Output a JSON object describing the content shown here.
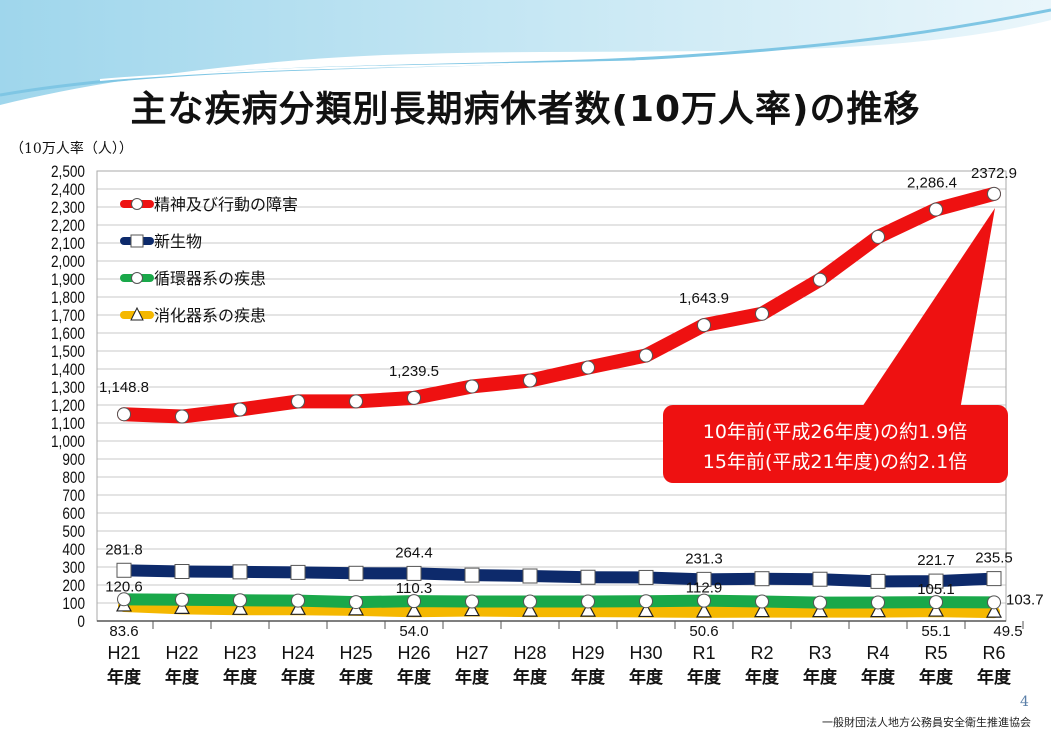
{
  "title": "主な疾病分類別長期病休者数(10万人率)の推移",
  "page_number": "4",
  "footer": "一般財団法人地方公務員安全衛生推進協会",
  "chart_data": {
    "type": "line",
    "title": "主な疾病分類別長期病休者数(10万人率)の推移",
    "ylabel": "（10万人率（人））",
    "ylim": [
      0,
      2500
    ],
    "ytick_step": 100,
    "grid": true,
    "legend_position": "top-left",
    "categories": [
      "H21",
      "H22",
      "H23",
      "H24",
      "H25",
      "H26",
      "H27",
      "H28",
      "H29",
      "H30",
      "R1",
      "R2",
      "R3",
      "R4",
      "R5",
      "R6"
    ],
    "category_suffix": "年度",
    "series": [
      {
        "name": "精神及び行動の障害",
        "color": "#ee1111",
        "marker": "circle",
        "values": [
          1148.8,
          1136,
          1175,
          1220,
          1220,
          1239.5,
          1303,
          1336,
          1408,
          1475,
          1643.9,
          1707,
          1896,
          2134,
          2286.4,
          2372.9
        ],
        "labels": {
          "0": "1,148.8",
          "5": "1,239.5",
          "10": "1,643.9",
          "14": "2,286.4",
          "15": "2372.9"
        }
      },
      {
        "name": "新生物",
        "color": "#0d2a6b",
        "marker": "square",
        "values": [
          281.8,
          275,
          273,
          270,
          265,
          264.4,
          255,
          250,
          243,
          242,
          231.3,
          235,
          232,
          220,
          221.7,
          235.5
        ],
        "labels": {
          "0": "281.8",
          "5": "264.4",
          "10": "231.3",
          "14": "221.7",
          "15": "235.5"
        }
      },
      {
        "name": "循環器系の疾患",
        "color": "#1aa84a",
        "marker": "circle",
        "values": [
          120.6,
          118,
          115,
          113,
          105,
          110.3,
          108,
          108,
          108,
          110,
          112.9,
          108,
          102,
          103,
          105.1,
          103.7
        ],
        "labels": {
          "0": "120.6",
          "5": "110.3",
          "10": "112.9",
          "14": "105.1",
          "15": "103.7"
        }
      },
      {
        "name": "消化器系の疾患",
        "color": "#f5b800",
        "marker": "triangle",
        "values": [
          83.6,
          70,
          65,
          65,
          62,
          54.0,
          58,
          55,
          55,
          53,
          50.6,
          52,
          52,
          52,
          55.1,
          49.5
        ],
        "labels": {
          "0": "83.6",
          "5": "54.0",
          "10": "50.6",
          "14": "55.1",
          "15": "49.5"
        }
      }
    ],
    "annotation": {
      "lines": [
        "10年前(平成26年度)の約1.9倍",
        "15年前(平成21年度)の約2.1倍"
      ],
      "color": "#ee1111"
    }
  }
}
